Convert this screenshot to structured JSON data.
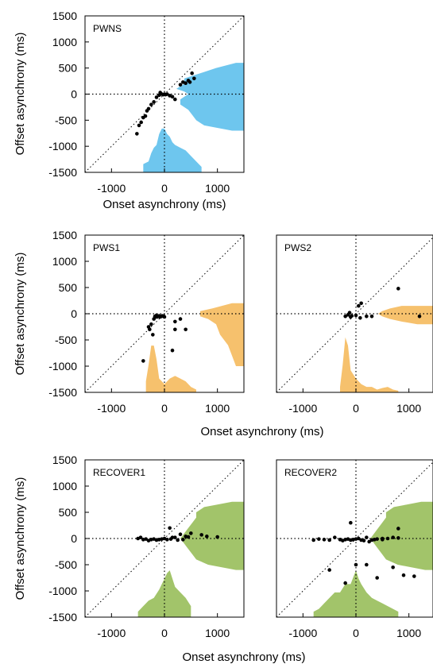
{
  "figure": {
    "ylabel": "Offset asynchrony (ms)",
    "xlabel": "Onset asynchrony (ms)"
  },
  "chart_data": [
    {
      "type": "scatter",
      "title": "PWNS",
      "color": "#6ec6ee",
      "xlim": [
        -1500,
        1500
      ],
      "ylim": [
        -1500,
        1500
      ],
      "xticks": [
        "-1000",
        "0",
        "1000"
      ],
      "yticks": [
        "1500",
        "1000",
        "500",
        "0",
        "-500",
        "-1000",
        "-1500"
      ],
      "xlabel": "Onset asynchrony (ms)",
      "ylabel": "Offset asynchrony (ms)",
      "grid": false,
      "reference_lines": [
        "x = 0",
        "y = 0",
        "y = x"
      ],
      "marginal_onset": {
        "x": [
          -400,
          -300,
          -250,
          -200,
          -150,
          -100,
          -50,
          0,
          50,
          100,
          150,
          200,
          300,
          400,
          500,
          600,
          700
        ],
        "v": [
          0.15,
          0.2,
          0.35,
          0.45,
          0.5,
          0.7,
          0.8,
          0.8,
          0.7,
          0.65,
          0.55,
          0.5,
          0.45,
          0.4,
          0.3,
          0.2,
          0.1
        ]
      },
      "marginal_offset": {
        "y": [
          600,
          500,
          400,
          300,
          200,
          100,
          50,
          0,
          -50,
          -100,
          -200,
          -300,
          -400,
          -500,
          -600,
          -700
        ],
        "v": [
          0.1,
          0.35,
          0.55,
          0.75,
          0.75,
          0.85,
          0.75,
          0.7,
          0.75,
          0.8,
          0.8,
          0.7,
          0.65,
          0.6,
          0.5,
          0.15
        ]
      },
      "points": [
        [
          -520,
          -760
        ],
        [
          -480,
          -600
        ],
        [
          -440,
          -540
        ],
        [
          -400,
          -450
        ],
        [
          -360,
          -420
        ],
        [
          -330,
          -320
        ],
        [
          -300,
          -280
        ],
        [
          -250,
          -200
        ],
        [
          -200,
          -150
        ],
        [
          -150,
          -60
        ],
        [
          -100,
          -20
        ],
        [
          -80,
          30
        ],
        [
          -50,
          0
        ],
        [
          -20,
          -10
        ],
        [
          0,
          0
        ],
        [
          20,
          -10
        ],
        [
          50,
          0
        ],
        [
          100,
          -30
        ],
        [
          150,
          -50
        ],
        [
          200,
          -100
        ],
        [
          300,
          180
        ],
        [
          350,
          230
        ],
        [
          400,
          210
        ],
        [
          450,
          260
        ],
        [
          480,
          230
        ],
        [
          520,
          400
        ],
        [
          560,
          300
        ]
      ]
    },
    {
      "type": "scatter",
      "title": "PWS1",
      "color": "#f6c16d",
      "xlim": [
        -1500,
        1500
      ],
      "ylim": [
        -1500,
        1500
      ],
      "xticks": [
        "-1000",
        "0",
        "1000"
      ],
      "yticks": [
        "1500",
        "1000",
        "500",
        "0",
        "-500",
        "-1000",
        "-1500"
      ],
      "xlabel": "",
      "ylabel": "Offset asynchrony (ms)",
      "grid": false,
      "reference_lines": [
        "x = 0",
        "y = 0",
        "y = x"
      ],
      "marginal_onset": {
        "x": [
          -350,
          -300,
          -250,
          -200,
          -150,
          -100,
          0,
          100,
          200,
          300,
          400,
          500,
          600
        ],
        "v": [
          0.2,
          0.5,
          0.85,
          0.85,
          0.6,
          0.25,
          0.15,
          0.25,
          0.3,
          0.25,
          0.2,
          0.1,
          0.05
        ]
      },
      "marginal_offset": {
        "y": [
          200,
          100,
          50,
          0,
          -50,
          -100,
          -200,
          -400,
          -600,
          -800,
          -1000
        ],
        "v": [
          0.15,
          0.4,
          0.55,
          0.55,
          0.55,
          0.45,
          0.35,
          0.3,
          0.2,
          0.15,
          0.1
        ]
      },
      "points": [
        [
          -400,
          -900
        ],
        [
          -300,
          -250
        ],
        [
          -280,
          -300
        ],
        [
          -250,
          -200
        ],
        [
          -220,
          -400
        ],
        [
          -200,
          -100
        ],
        [
          -180,
          -50
        ],
        [
          -160,
          -60
        ],
        [
          -150,
          -30
        ],
        [
          -140,
          -60
        ],
        [
          -120,
          -50
        ],
        [
          -100,
          -40
        ],
        [
          -80,
          -60
        ],
        [
          -60,
          -50
        ],
        [
          -40,
          -40
        ],
        [
          -20,
          -50
        ],
        [
          0,
          -60
        ],
        [
          150,
          -700
        ],
        [
          200,
          -150
        ],
        [
          200,
          -300
        ],
        [
          300,
          -100
        ],
        [
          400,
          -300
        ]
      ]
    },
    {
      "type": "scatter",
      "title": "PWS2",
      "color": "#f6c16d",
      "xlim": [
        -1500,
        1500
      ],
      "ylim": [
        -1500,
        1500
      ],
      "xticks": [
        "-1000",
        "0",
        "1000"
      ],
      "yticks": [],
      "xlabel": "Onset asynchrony (ms)",
      "ylabel": "",
      "grid": false,
      "reference_lines": [
        "x = 0",
        "y = 0",
        "y = x"
      ],
      "marginal_onset": {
        "x": [
          -300,
          -250,
          -200,
          -150,
          -100,
          0,
          100,
          200,
          300,
          400,
          500,
          600,
          700,
          800
        ],
        "v": [
          0.1,
          0.5,
          1.0,
          0.85,
          0.4,
          0.25,
          0.15,
          0.1,
          0.1,
          0.05,
          0.08,
          0.1,
          0.05,
          0.03
        ]
      },
      "marginal_offset": {
        "y": [
          150,
          100,
          50,
          0,
          -50,
          -100,
          -150,
          -200
        ],
        "v": [
          0.4,
          0.55,
          0.65,
          0.7,
          0.65,
          0.55,
          0.4,
          0.2
        ]
      },
      "points": [
        [
          -200,
          -50
        ],
        [
          -150,
          -20
        ],
        [
          -120,
          20
        ],
        [
          -100,
          -60
        ],
        [
          -80,
          -40
        ],
        [
          0,
          -30
        ],
        [
          50,
          150
        ],
        [
          80,
          -80
        ],
        [
          100,
          200
        ],
        [
          200,
          -50
        ],
        [
          300,
          -50
        ],
        [
          800,
          480
        ],
        [
          1200,
          -50
        ]
      ]
    },
    {
      "type": "scatter",
      "title": "RECOVER1",
      "color": "#a2c46a",
      "xlim": [
        -1500,
        1500
      ],
      "ylim": [
        -1500,
        1500
      ],
      "xticks": [
        "-1000",
        "0",
        "1000"
      ],
      "yticks": [
        "1500",
        "1000",
        "500",
        "0",
        "-500",
        "-1000",
        "-1500"
      ],
      "xlabel": "",
      "ylabel": "Offset asynchrony (ms)",
      "grid": false,
      "reference_lines": [
        "x = 0",
        "y = 0",
        "y = x"
      ],
      "marginal_onset": {
        "x": [
          -500,
          -400,
          -300,
          -200,
          -100,
          0,
          50,
          100,
          150,
          200,
          300,
          400,
          500
        ],
        "v": [
          0.1,
          0.2,
          0.3,
          0.35,
          0.5,
          0.7,
          0.8,
          0.85,
          0.7,
          0.55,
          0.45,
          0.35,
          0.2
        ]
      },
      "marginal_offset": {
        "y": [
          700,
          600,
          500,
          400,
          300,
          200,
          100,
          0,
          -100,
          -200,
          -300,
          -400,
          -500,
          -600
        ],
        "v": [
          0.15,
          0.5,
          0.6,
          0.6,
          0.65,
          0.7,
          0.75,
          0.8,
          0.75,
          0.7,
          0.65,
          0.6,
          0.45,
          0.1
        ]
      },
      "points": [
        [
          -500,
          0
        ],
        [
          -450,
          20
        ],
        [
          -400,
          -20
        ],
        [
          -350,
          -10
        ],
        [
          -300,
          -40
        ],
        [
          -250,
          -20
        ],
        [
          -200,
          -10
        ],
        [
          -150,
          -30
        ],
        [
          -100,
          -20
        ],
        [
          -50,
          -10
        ],
        [
          0,
          0
        ],
        [
          50,
          -20
        ],
        [
          100,
          200
        ],
        [
          120,
          -10
        ],
        [
          150,
          20
        ],
        [
          200,
          20
        ],
        [
          250,
          -30
        ],
        [
          300,
          80
        ],
        [
          350,
          -20
        ],
        [
          400,
          40
        ],
        [
          450,
          30
        ],
        [
          500,
          100
        ],
        [
          700,
          70
        ],
        [
          800,
          40
        ],
        [
          1000,
          30
        ]
      ]
    },
    {
      "type": "scatter",
      "title": "RECOVER2",
      "color": "#a2c46a",
      "xlim": [
        -1500,
        1500
      ],
      "ylim": [
        -1500,
        1500
      ],
      "xticks": [
        "-1000",
        "0",
        "1000"
      ],
      "yticks": [],
      "xlabel": "Onset asynchrony (ms)",
      "ylabel": "",
      "grid": false,
      "reference_lines": [
        "x = 0",
        "y = 0",
        "y = x"
      ],
      "marginal_onset": {
        "x": [
          -800,
          -700,
          -600,
          -500,
          -400,
          -300,
          -200,
          -100,
          0,
          50,
          100,
          200,
          300,
          400,
          500,
          600,
          700,
          800
        ],
        "v": [
          0.1,
          0.15,
          0.25,
          0.35,
          0.45,
          0.45,
          0.6,
          0.6,
          0.85,
          0.7,
          0.6,
          0.45,
          0.35,
          0.3,
          0.25,
          0.2,
          0.15,
          0.1
        ]
      },
      "marginal_offset": {
        "y": [
          700,
          600,
          500,
          400,
          300,
          200,
          100,
          0,
          -100,
          -200,
          -300,
          -400,
          -500,
          -600
        ],
        "v": [
          0.15,
          0.5,
          0.6,
          0.6,
          0.65,
          0.7,
          0.75,
          0.8,
          0.75,
          0.7,
          0.65,
          0.6,
          0.45,
          0.1
        ]
      },
      "points": [
        [
          -800,
          -30
        ],
        [
          -700,
          -10
        ],
        [
          -600,
          -20
        ],
        [
          -500,
          -30
        ],
        [
          -400,
          20
        ],
        [
          -300,
          -20
        ],
        [
          -250,
          -40
        ],
        [
          -200,
          -20
        ],
        [
          -150,
          -10
        ],
        [
          -100,
          -30
        ],
        [
          -50,
          -20
        ],
        [
          0,
          -10
        ],
        [
          50,
          0
        ],
        [
          100,
          -30
        ],
        [
          150,
          -40
        ],
        [
          200,
          20
        ],
        [
          250,
          -60
        ],
        [
          300,
          -30
        ],
        [
          350,
          -20
        ],
        [
          400,
          -10
        ],
        [
          500,
          -20
        ],
        [
          600,
          0
        ],
        [
          700,
          20
        ],
        [
          800,
          10
        ],
        [
          -500,
          -600
        ],
        [
          -200,
          -850
        ],
        [
          0,
          -500
        ],
        [
          200,
          -500
        ],
        [
          400,
          -750
        ],
        [
          700,
          -550
        ],
        [
          900,
          -700
        ],
        [
          1100,
          -720
        ],
        [
          500,
          0
        ],
        [
          800,
          190
        ],
        [
          -100,
          300
        ]
      ]
    }
  ]
}
